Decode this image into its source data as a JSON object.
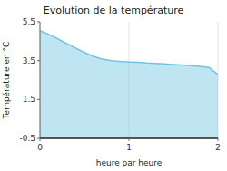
{
  "chart_data": {
    "type": "area",
    "title": "Evolution de la température",
    "xlabel": "heure par heure",
    "ylabel": "Température en °C",
    "x": [
      0.0,
      0.05,
      0.1,
      0.2,
      0.3,
      0.4,
      0.5,
      0.6,
      0.7,
      0.8,
      0.9,
      1.0,
      1.1,
      1.2,
      1.3,
      1.4,
      1.5,
      1.6,
      1.7,
      1.8,
      1.9,
      2.0
    ],
    "values": [
      5.05,
      4.95,
      4.85,
      4.62,
      4.38,
      4.15,
      3.92,
      3.72,
      3.58,
      3.5,
      3.46,
      3.43,
      3.41,
      3.38,
      3.36,
      3.33,
      3.3,
      3.27,
      3.24,
      3.2,
      3.15,
      2.78
    ],
    "color": "#6ec6e0",
    "xlim": [
      0,
      2
    ],
    "ylim": [
      -0.5,
      5.5
    ],
    "xticks": [
      0,
      1,
      2
    ],
    "yticks": [
      -0.5,
      1.5,
      3.5,
      5.5
    ],
    "grid": "x"
  }
}
